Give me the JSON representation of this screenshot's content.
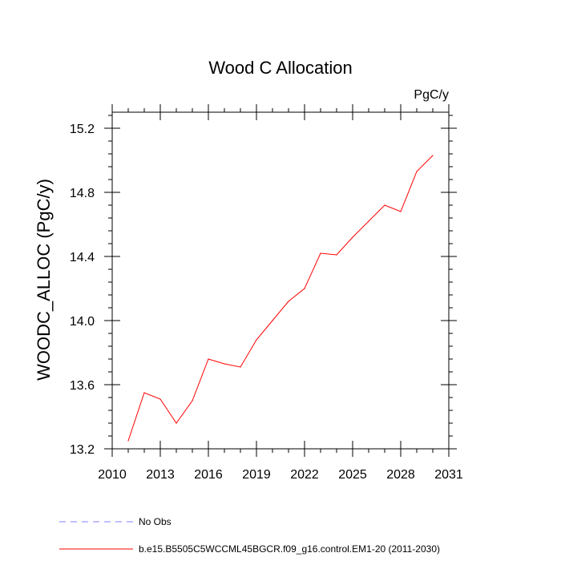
{
  "chart_data": {
    "type": "line",
    "title": "Wood C Allocation",
    "units": "PgC/y",
    "xlabel": "",
    "ylabel": "WOODC_ALLOC  (PgC/y)",
    "xlim": [
      2010,
      2031
    ],
    "ylim": [
      13.2,
      15.3
    ],
    "x_ticks": [
      2010,
      2013,
      2016,
      2019,
      2022,
      2025,
      2028,
      2031
    ],
    "y_ticks": [
      13.2,
      13.6,
      14.0,
      14.4,
      14.8,
      15.2
    ],
    "y_tick_labels": [
      "13.2",
      "13.6",
      "14.0",
      "14.4",
      "14.8",
      "15.2"
    ],
    "grid": false,
    "legend_placement": "bottom",
    "series": [
      {
        "name": "b.e15.B5505C5WCCML45BGCR.f09_g16.control.EM1-20 (2011-2030)",
        "color": "#ff0000",
        "style": "solid",
        "x": [
          2011,
          2012,
          2013,
          2014,
          2015,
          2016,
          2017,
          2018,
          2019,
          2020,
          2021,
          2022,
          2023,
          2024,
          2025,
          2026,
          2027,
          2028,
          2029,
          2030
        ],
        "y": [
          13.25,
          13.55,
          13.51,
          13.36,
          13.5,
          13.76,
          13.73,
          13.71,
          13.88,
          14.0,
          14.12,
          14.2,
          14.42,
          14.41,
          14.52,
          14.62,
          14.72,
          14.68,
          14.93,
          15.03
        ]
      }
    ],
    "legend": [
      {
        "label": "No Obs",
        "color": "#8080ff",
        "style": "dashed"
      },
      {
        "label": "b.e15.B5505C5WCCML45BGCR.f09_g16.control.EM1-20 (2011-2030)",
        "color": "#ff0000",
        "style": "solid"
      }
    ]
  }
}
